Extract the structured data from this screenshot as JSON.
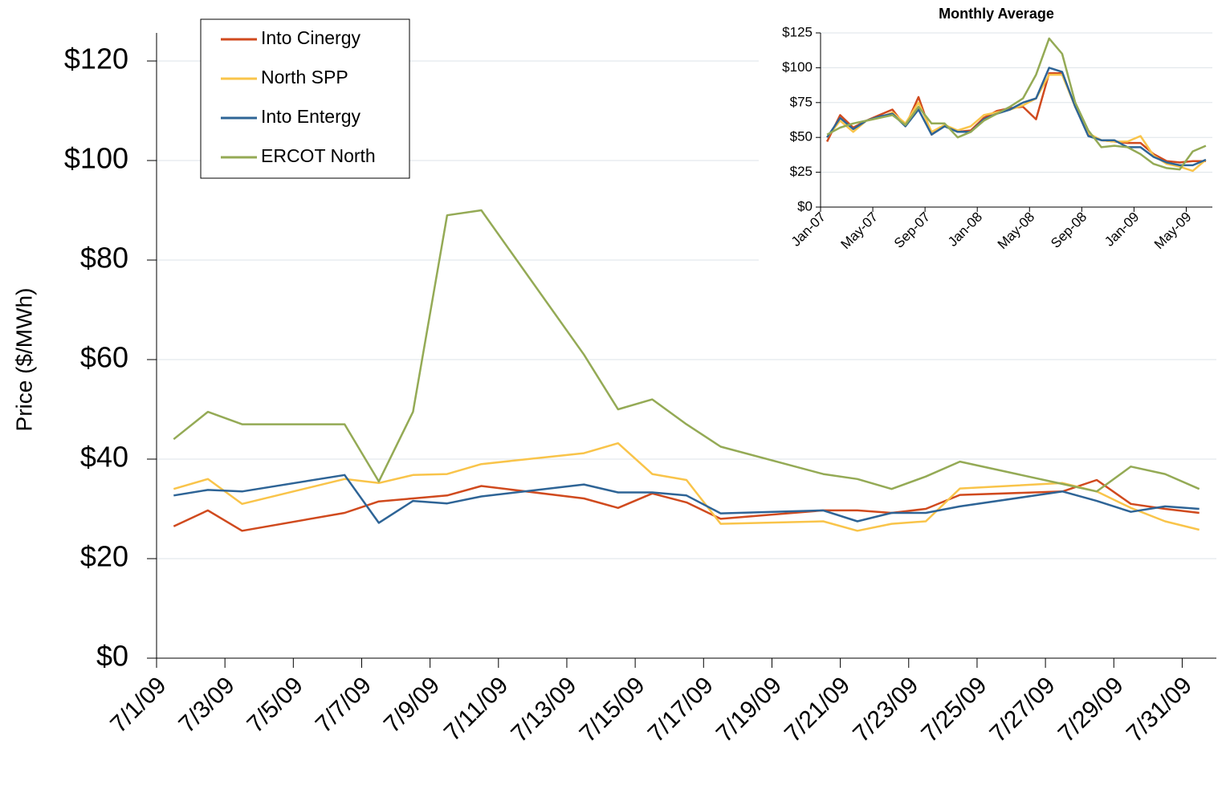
{
  "chart_data": [
    {
      "type": "line",
      "y_label": "Price ($/MWh)",
      "x": [
        "7/1/09",
        "7/2/09",
        "7/3/09",
        "7/6/09",
        "7/7/09",
        "7/8/09",
        "7/9/09",
        "7/10/09",
        "7/13/09",
        "7/14/09",
        "7/15/09",
        "7/16/09",
        "7/17/09",
        "7/20/09",
        "7/21/09",
        "7/22/09",
        "7/23/09",
        "7/24/09",
        "7/27/09",
        "7/28/09",
        "7/29/09",
        "7/30/09",
        "7/31/09"
      ],
      "xticks": [
        "7/1/09",
        "7/3/09",
        "7/5/09",
        "7/7/09",
        "7/9/09",
        "7/11/09",
        "7/13/09",
        "7/15/09",
        "7/17/09",
        "7/19/09",
        "7/21/09",
        "7/23/09",
        "7/25/09",
        "7/27/09",
        "7/29/09",
        "7/31/09"
      ],
      "ylim": [
        0,
        120
      ],
      "yticks": [
        {
          "value": 0,
          "label": "$0"
        },
        {
          "value": 20,
          "label": "$20"
        },
        {
          "value": 40,
          "label": "$40"
        },
        {
          "value": 60,
          "label": "$60"
        },
        {
          "value": 80,
          "label": "$80"
        },
        {
          "value": 100,
          "label": "$100"
        },
        {
          "value": 120,
          "label": "$120"
        }
      ],
      "grid": true,
      "legend": "upper left",
      "series": [
        {
          "name": "Into Cinergy",
          "color": "#d04a1e",
          "values": [
            26.5,
            29.7,
            25.6,
            29.2,
            31.5,
            32.1,
            32.7,
            34.6,
            32.1,
            30.2,
            33.1,
            31.3,
            28,
            29.7,
            29.7,
            29.2,
            30,
            32.8,
            33.5,
            35.8,
            31,
            30,
            29.2
          ]
        },
        {
          "name": "North SPP",
          "color": "#f9c44a",
          "values": [
            34,
            36,
            31,
            36,
            35.2,
            36.8,
            37,
            39,
            41.2,
            43.2,
            37,
            35.8,
            27,
            27.5,
            25.6,
            27,
            27.5,
            34.1,
            35.2,
            33.5,
            30.2,
            27.5,
            25.8
          ]
        },
        {
          "name": "Into Entergy",
          "color": "#2e6496",
          "values": [
            32.7,
            33.8,
            33.5,
            36.8,
            27.2,
            31.6,
            31.1,
            32.5,
            34.9,
            33.3,
            33.3,
            32.7,
            29.1,
            29.7,
            27.5,
            29.2,
            29.2,
            30.5,
            33.5,
            31.6,
            29.4,
            30.5,
            30
          ]
        },
        {
          "name": "ERCOT North",
          "color": "#94aa55",
          "values": [
            44,
            49.5,
            47,
            47,
            35.5,
            49.5,
            89,
            90,
            61,
            50,
            52,
            47,
            42.5,
            37,
            36,
            34,
            36.5,
            39.5,
            35,
            33.5,
            38.5,
            37,
            34
          ]
        }
      ]
    },
    {
      "type": "line",
      "title": "Monthly Average",
      "x": [
        "Jan-07",
        "Feb-07",
        "Mar-07",
        "Apr-07",
        "May-07",
        "Jun-07",
        "Jul-07",
        "Aug-07",
        "Sep-07",
        "Oct-07",
        "Nov-07",
        "Dec-07",
        "Jan-08",
        "Feb-08",
        "Mar-08",
        "Apr-08",
        "May-08",
        "Jun-08",
        "Jul-08",
        "Aug-08",
        "Sep-08",
        "Oct-08",
        "Nov-08",
        "Dec-08",
        "Jan-09",
        "Feb-09",
        "Mar-09",
        "Apr-09",
        "May-09",
        "Jun-09"
      ],
      "xticks": [
        "Jan-07",
        "May-07",
        "Sep-07",
        "Jan-08",
        "May-08",
        "Sep-08",
        "Jan-09",
        "May-09"
      ],
      "ylim": [
        0,
        125
      ],
      "yticks": [
        {
          "value": 0,
          "label": "$0"
        },
        {
          "value": 25,
          "label": "$25"
        },
        {
          "value": 50,
          "label": "$50"
        },
        {
          "value": 75,
          "label": "$75"
        },
        {
          "value": 100,
          "label": "$100"
        },
        {
          "value": 125,
          "label": "$125"
        }
      ],
      "grid": true,
      "series": [
        {
          "name": "Into Cinergy",
          "color": "#d04a1e",
          "values": [
            47,
            66,
            57,
            62,
            66,
            70,
            58,
            79,
            52,
            59,
            54,
            55,
            64,
            69,
            71,
            72,
            63,
            96,
            96,
            72,
            52,
            48,
            47,
            46,
            46,
            38,
            33,
            32,
            33,
            33
          ]
        },
        {
          "name": "North SPP",
          "color": "#f9c44a",
          "values": [
            50,
            62,
            54,
            62,
            64,
            68,
            60,
            75,
            54,
            59,
            55,
            58,
            66,
            68,
            70,
            73,
            78,
            95,
            95,
            72,
            53,
            48,
            47,
            47,
            51,
            37,
            31,
            29,
            26,
            34
          ]
        },
        {
          "name": "Into Entergy",
          "color": "#2e6496",
          "values": [
            50,
            64,
            56,
            62,
            65,
            67,
            58,
            70,
            52,
            58,
            54,
            54,
            63,
            67,
            70,
            75,
            78,
            100,
            97,
            72,
            51,
            48,
            48,
            43,
            43,
            36,
            32,
            30,
            30,
            34
          ]
        },
        {
          "name": "ERCOT North",
          "color": "#94aa55",
          "values": [
            52,
            57,
            60,
            62,
            64,
            66,
            59,
            72,
            60,
            60,
            50,
            54,
            62,
            67,
            72,
            78,
            95,
            121,
            110,
            75,
            55,
            43,
            44,
            43,
            38,
            31,
            28,
            27,
            40,
            44
          ]
        }
      ]
    }
  ]
}
